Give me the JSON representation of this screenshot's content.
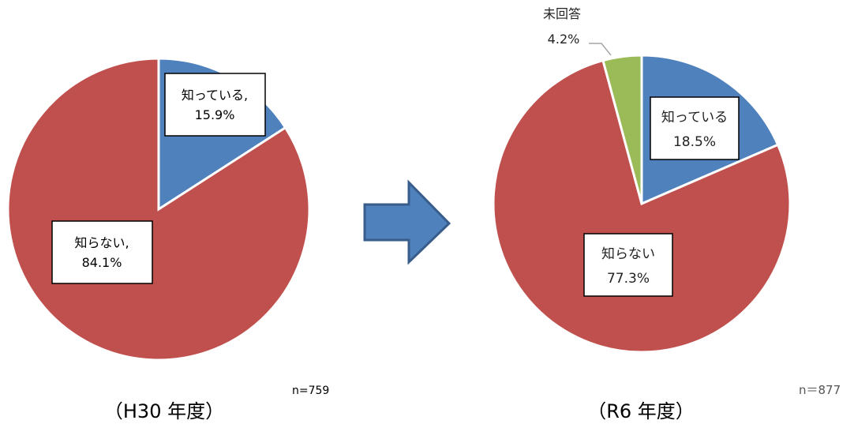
{
  "chart_data": [
    {
      "type": "pie",
      "period_label": "（H30 年度）",
      "n_label": "n=759",
      "slices": [
        {
          "name": "知っている,",
          "value": 15.9,
          "value_label": "15.9%",
          "color": "#4f81bd"
        },
        {
          "name": "知らない,",
          "value": 84.1,
          "value_label": "84.1%",
          "color": "#c0504d"
        }
      ]
    },
    {
      "type": "pie",
      "period_label": "（R6 年度）",
      "n_label": "n＝877",
      "slices": [
        {
          "name": "知っている",
          "value": 18.5,
          "value_label": "18.5%",
          "color": "#4f81bd"
        },
        {
          "name": "知らない",
          "value": 77.3,
          "value_label": "77.3%",
          "color": "#c0504d"
        },
        {
          "name": "未回答",
          "value": 4.2,
          "value_label": "4.2%",
          "color": "#9bbb59"
        }
      ]
    }
  ],
  "arrow": {
    "color": "#4f81bd",
    "border_color": "#385d8a"
  }
}
